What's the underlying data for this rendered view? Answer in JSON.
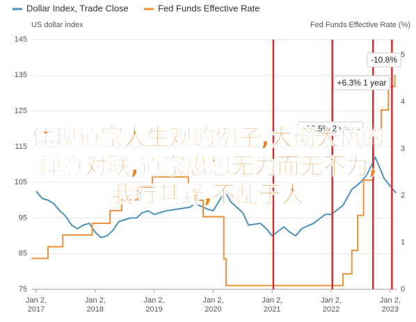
{
  "chart_data": {
    "type": "line",
    "legend": [
      "Dollar Index, Trade Close",
      "Fed Funds Effective Rate"
    ],
    "ylabel": "US dollar index",
    "y2label": "Fed Funds Effective Rate (%)",
    "xlim": [
      2016.917,
      2023.108
    ],
    "xticks": [
      {
        "value": 2017,
        "label": "Jan 2, 2017"
      },
      {
        "value": 2018,
        "label": "Jan 2, 2018"
      },
      {
        "value": 2019,
        "label": "Jan 2, 2019"
      },
      {
        "value": 2020,
        "label": "Jan 2, 2020"
      },
      {
        "value": 2021,
        "label": "Jan 2, 2021"
      },
      {
        "value": 2022,
        "label": "Jan 2, 2022"
      },
      {
        "value": 2023,
        "label": "Jan 2, 2023"
      }
    ],
    "ylim": [
      75,
      145
    ],
    "yticks": [
      75,
      85,
      95,
      105,
      115,
      125,
      135,
      145
    ],
    "y2lim": [
      0,
      5.33
    ],
    "y2ticks": [
      0,
      1,
      2,
      3,
      4,
      5
    ],
    "grid": true,
    "series": [
      {
        "name": "Dollar Index, Trade Close",
        "color": "#4a90b8",
        "x": [
          2017.0,
          2017.1,
          2017.2,
          2017.3,
          2017.4,
          2017.5,
          2017.6,
          2017.7,
          2017.8,
          2017.9,
          2018.0,
          2018.1,
          2018.2,
          2018.3,
          2018.4,
          2018.5,
          2018.6,
          2018.7,
          2018.8,
          2018.9,
          2019.0,
          2019.2,
          2019.4,
          2019.6,
          2019.7,
          2019.9,
          2020.0,
          2020.2,
          2020.3,
          2020.4,
          2020.5,
          2020.6,
          2020.8,
          2020.9,
          2021.0,
          2021.2,
          2021.3,
          2021.4,
          2021.5,
          2021.7,
          2021.9,
          2022.0,
          2022.2,
          2022.35,
          2022.5,
          2022.6,
          2022.75,
          2022.8,
          2022.9,
          2023.0,
          2023.1
        ],
        "values": [
          102.5,
          100.5,
          100,
          99,
          97,
          95.5,
          93,
          92,
          93,
          93.5,
          91,
          89.5,
          90,
          91.5,
          94,
          94.5,
          95,
          95,
          96.5,
          97,
          96,
          97,
          97.5,
          98,
          99,
          97.5,
          97,
          102.5,
          99.5,
          98,
          96.5,
          93,
          93.5,
          92,
          90,
          92.5,
          91,
          90,
          92,
          93.5,
          96,
          96,
          98.5,
          103,
          105,
          107,
          112,
          110,
          106,
          104,
          102
        ]
      },
      {
        "name": "Fed Funds Effective Rate",
        "color": "#f0913a",
        "axis": "y2",
        "step": true,
        "x": [
          2016.92,
          2017.2,
          2017.45,
          2017.95,
          2018.25,
          2018.45,
          2018.72,
          2018.97,
          2019.58,
          2019.7,
          2019.83,
          2020.18,
          2020.22,
          2021.0,
          2022.2,
          2022.35,
          2022.45,
          2022.55,
          2022.72,
          2022.85,
          2022.97,
          2023.08
        ],
        "values": [
          0.66,
          0.91,
          1.16,
          1.41,
          1.68,
          1.91,
          2.18,
          2.4,
          2.13,
          1.9,
          1.55,
          0.65,
          0.08,
          0.08,
          0.33,
          0.83,
          1.58,
          2.33,
          3.08,
          3.83,
          4.33,
          4.58
        ]
      }
    ],
    "markers": {
      "color": "#d32f2f",
      "x": [
        2021.02,
        2022.02,
        2022.71,
        2023.03
      ]
    },
    "annotations": [
      "-10.8%",
      "+6.3% 1 year",
      "+13.5% 2 years"
    ],
    "overlay_text": [
      "体现道家人生观的例子,大彻大悟的",
      "禅意对联,道家思想无为而无不为,",
      "我行其野,不乱于人"
    ]
  }
}
